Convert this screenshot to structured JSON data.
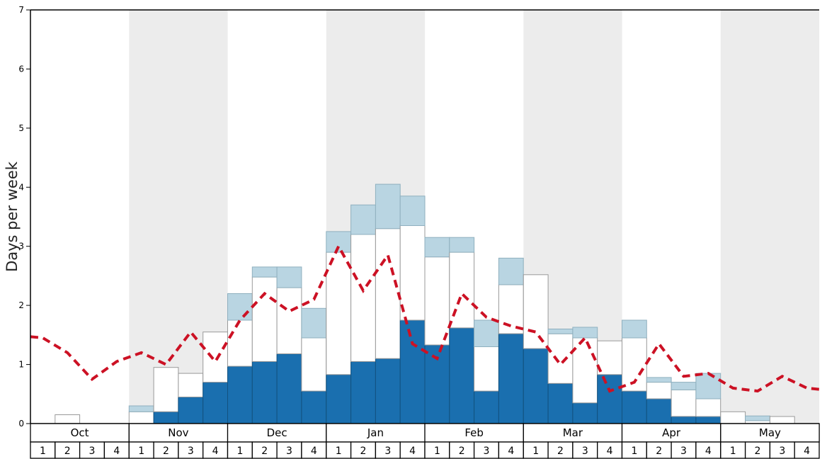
{
  "chart_data": {
    "type": "bar",
    "stacked": true,
    "title": "",
    "ylabel": "Days per week",
    "xlabel": "",
    "ylim": [
      0,
      7
    ],
    "yticks": [
      0,
      1,
      2,
      3,
      4,
      5,
      6,
      7
    ],
    "grid": false,
    "legend_position": "none",
    "months": [
      "Oct",
      "Nov",
      "Dec",
      "Jan",
      "Feb",
      "Mar",
      "Apr",
      "May"
    ],
    "week_labels": [
      "1",
      "2",
      "3",
      "4"
    ],
    "colors": {
      "band": "#ececec",
      "axis": "#000000",
      "table_border": "#000000",
      "plot_background": "#ffffff"
    },
    "series": [
      {
        "name": "dark-blue-bars",
        "color": "#1a6faf",
        "stroke": "#12527f",
        "values": [
          0,
          0,
          0,
          0,
          0,
          0.2,
          0.45,
          0.7,
          0.97,
          1.05,
          1.18,
          0.55,
          0.83,
          1.05,
          1.1,
          1.75,
          1.33,
          1.62,
          0.55,
          1.52,
          1.27,
          0.68,
          0.35,
          0.83,
          0.55,
          0.42,
          0.12,
          0.12,
          0,
          0,
          0,
          0
        ]
      },
      {
        "name": "white-bars",
        "color": "#ffffff",
        "stroke": "#999999",
        "values": [
          0,
          0.15,
          0,
          0,
          0.2,
          0.75,
          0.4,
          0.85,
          0.78,
          1.43,
          1.12,
          0.9,
          2.07,
          2.15,
          2.2,
          1.6,
          1.49,
          1.28,
          0.75,
          0.83,
          1.25,
          0.84,
          1.1,
          0.57,
          0.9,
          0.28,
          0.45,
          0.3,
          0.2,
          0.05,
          0.12,
          0
        ]
      },
      {
        "name": "light-blue-bars",
        "color": "#b9d5e2",
        "stroke": "#8fb0bf",
        "values": [
          0,
          0,
          0,
          0,
          0.1,
          0,
          0,
          0,
          0.45,
          0.17,
          0.35,
          0.5,
          0.35,
          0.5,
          0.75,
          0.5,
          0.33,
          0.25,
          0.45,
          0.45,
          0,
          0.08,
          0.18,
          0,
          0.3,
          0.08,
          0.13,
          0.43,
          0,
          0.08,
          0,
          0
        ]
      }
    ],
    "line": {
      "name": "red-dashed-trend",
      "color": "#cc1124",
      "dash": [
        11,
        7
      ],
      "width": 4,
      "edge_start": 1.47,
      "edge_end": 0.58,
      "values": [
        1.45,
        1.2,
        0.75,
        1.05,
        1.2,
        1.0,
        1.55,
        1.05,
        1.75,
        2.2,
        1.9,
        2.1,
        3.0,
        2.25,
        2.85,
        1.35,
        1.1,
        2.2,
        1.8,
        1.65,
        1.55,
        1.0,
        1.45,
        0.55,
        0.7,
        1.35,
        0.8,
        0.85,
        0.6,
        0.55,
        0.8,
        0.6
      ]
    }
  }
}
